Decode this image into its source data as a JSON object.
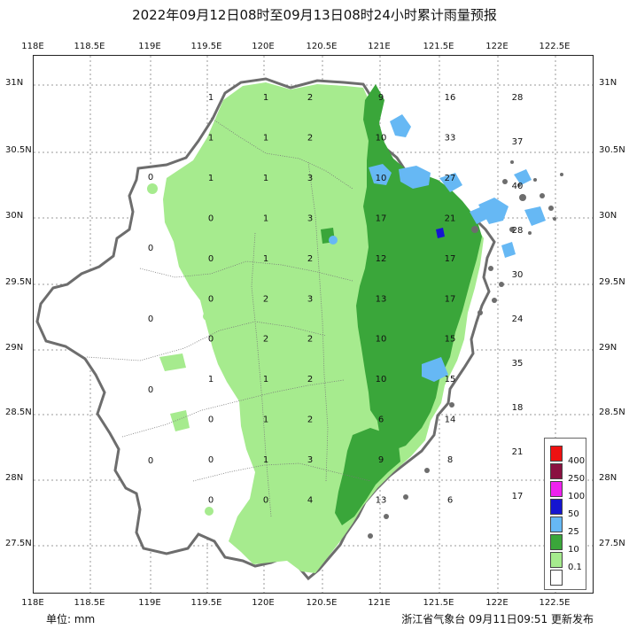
{
  "title": "2022年09月12日08时至09月13日08时24小时累计雨量预报",
  "footer": {
    "unit": "单位: mm",
    "source": "浙江省气象台 09月11日09:51 更新发布"
  },
  "axes": {
    "x_ticks": [
      "118E",
      "118.5E",
      "119E",
      "119.5E",
      "120E",
      "120.5E",
      "121E",
      "121.5E",
      "122E",
      "122.5E"
    ],
    "y_ticks": [
      "31N",
      "30.5N",
      "30N",
      "29.5N",
      "29N",
      "28.5N",
      "28N",
      "27.5N"
    ]
  },
  "legend": {
    "items": [
      {
        "label": "400",
        "color": "#ee1111"
      },
      {
        "label": "250",
        "color": "#8a1140"
      },
      {
        "label": "100",
        "color": "#ee22ee"
      },
      {
        "label": "50",
        "color": "#1515d0"
      },
      {
        "label": "25",
        "color": "#66b8f4"
      },
      {
        "label": "10",
        "color": "#3aa63a"
      },
      {
        "label": "0.1",
        "color": "#a6eb8e"
      },
      {
        "label": "",
        "color": "#ffffff"
      }
    ]
  },
  "map_data": {
    "columns": [
      {
        "lon": 119.0,
        "values": [
          "0",
          "0",
          "0",
          "0",
          "0"
        ]
      },
      {
        "lon": 119.5,
        "values": [
          "1",
          "1",
          "1",
          "0",
          "0",
          "0",
          "0",
          "1",
          "0",
          "0",
          "0"
        ]
      },
      {
        "lon": 120.0,
        "values": [
          "1",
          "1",
          "1",
          "1",
          "1",
          "2",
          "2",
          "1",
          "1",
          "1",
          "0"
        ]
      },
      {
        "lon": 120.5,
        "values": [
          "2",
          "2",
          "3",
          "3",
          "2",
          "3",
          "2",
          "2",
          "2",
          "3",
          "4"
        ]
      },
      {
        "lon": 121.0,
        "values": [
          "9",
          "10",
          "10",
          "17",
          "12",
          "13",
          "10",
          "10",
          "6",
          "9",
          "13"
        ]
      },
      {
        "lon": 121.5,
        "values": [
          "16",
          "33",
          "27",
          "21",
          "17",
          "17",
          "15",
          "15",
          "14",
          "8",
          "6"
        ]
      },
      {
        "lon": 122.0,
        "values": [
          "28",
          "37",
          "40",
          "28",
          "30",
          "24",
          "35",
          "18",
          "21",
          "17"
        ]
      }
    ]
  }
}
